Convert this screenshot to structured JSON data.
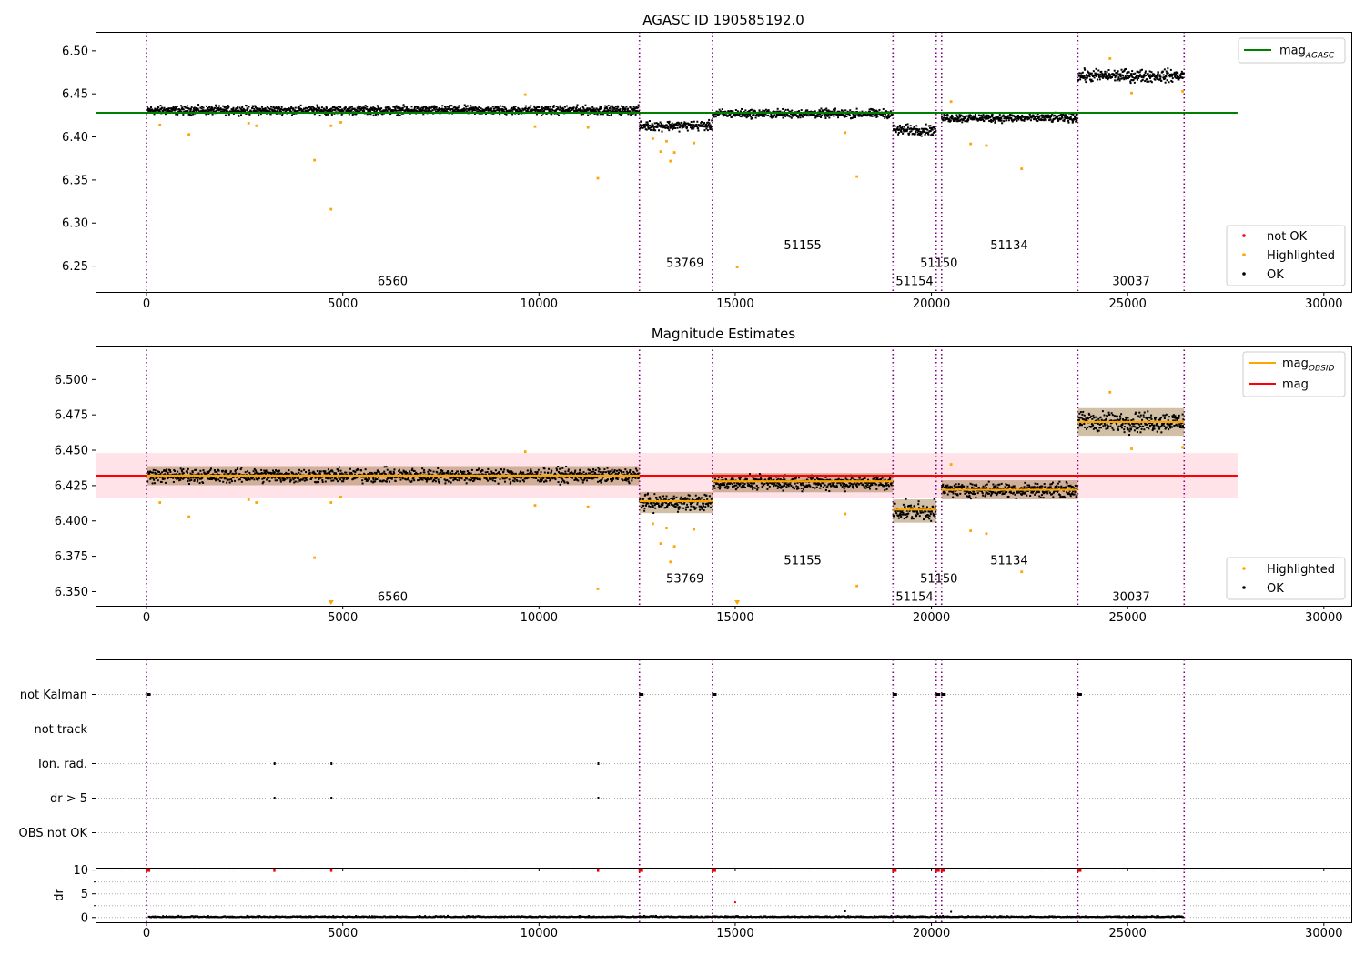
{
  "chart_data": [
    {
      "type": "scatter",
      "title": "AGASC ID 190585192.0",
      "xlim": [
        -1300,
        30700
      ],
      "ylim": [
        6.22,
        6.522
      ],
      "xticks": [
        0,
        5000,
        10000,
        15000,
        20000,
        25000,
        30000
      ],
      "yticks": [
        6.25,
        6.3,
        6.35,
        6.4,
        6.45,
        6.5
      ],
      "obs_boundaries": [
        0,
        12560,
        14420,
        19020,
        20120,
        20260,
        23730,
        26440
      ],
      "obs_labels": [
        {
          "text": "6560",
          "x": 6270,
          "y": 6.232
        },
        {
          "text": "53769",
          "x": 13720,
          "y": 6.253
        },
        {
          "text": "51155",
          "x": 16720,
          "y": 6.274
        },
        {
          "text": "51154",
          "x": 19570,
          "y": 6.232
        },
        {
          "text": "51150",
          "x": 20190,
          "y": 6.253
        },
        {
          "text": "51134",
          "x": 21980,
          "y": 6.274
        },
        {
          "text": "30037",
          "x": 25090,
          "y": 6.232
        }
      ],
      "segments": [
        {
          "x": [
            0,
            12560
          ],
          "center": 6.431,
          "spread": 0.0045
        },
        {
          "x": [
            12560,
            14420
          ],
          "center": 6.413,
          "spread": 0.005
        },
        {
          "x": [
            14420,
            19020
          ],
          "center": 6.427,
          "spread": 0.0045
        },
        {
          "x": [
            19020,
            20120
          ],
          "center": 6.408,
          "spread": 0.0055
        },
        {
          "x": [
            20260,
            23730
          ],
          "center": 6.422,
          "spread": 0.0045
        },
        {
          "x": [
            23730,
            26440
          ],
          "center": 6.471,
          "spread": 0.0065
        }
      ],
      "reference_line": {
        "name": "mag_AGASC",
        "y": 6.428,
        "x": [
          -1300,
          27800
        ],
        "color": "#008000"
      },
      "highlighted_points": [
        [
          340,
          6.414
        ],
        [
          1080,
          6.403
        ],
        [
          2600,
          6.416
        ],
        [
          2800,
          6.413
        ],
        [
          4280,
          6.373
        ],
        [
          4700,
          6.316
        ],
        [
          4700,
          6.413
        ],
        [
          4950,
          6.417
        ],
        [
          9900,
          6.412
        ],
        [
          11250,
          6.411
        ],
        [
          11500,
          6.352
        ],
        [
          12900,
          6.398
        ],
        [
          13100,
          6.383
        ],
        [
          13250,
          6.395
        ],
        [
          13350,
          6.372
        ],
        [
          13450,
          6.382
        ],
        [
          13950,
          6.393
        ],
        [
          15050,
          6.249
        ],
        [
          17800,
          6.405
        ],
        [
          18100,
          6.354
        ],
        [
          20500,
          6.441
        ],
        [
          21000,
          6.392
        ],
        [
          21400,
          6.39
        ],
        [
          22300,
          6.363
        ],
        [
          9650,
          6.449
        ],
        [
          24550,
          6.491
        ],
        [
          25100,
          6.451
        ],
        [
          26400,
          6.453
        ]
      ],
      "legend": {
        "location": "upper right",
        "entries": [
          "mag_AGASC"
        ]
      },
      "legend2": {
        "location": "lower right",
        "entries": [
          "not OK",
          "Highlighted",
          "OK"
        ]
      }
    },
    {
      "type": "scatter",
      "title": "Magnitude Estimates",
      "xlim": [
        -1300,
        30700
      ],
      "ylim": [
        6.34,
        6.524
      ],
      "xticks": [
        0,
        5000,
        10000,
        15000,
        20000,
        25000,
        30000
      ],
      "yticks": [
        6.35,
        6.375,
        6.4,
        6.425,
        6.45,
        6.475,
        6.5
      ],
      "obs_labels": [
        {
          "text": "6560",
          "x": 6270,
          "y": 6.346
        },
        {
          "text": "53769",
          "x": 13720,
          "y": 6.359
        },
        {
          "text": "51155",
          "x": 16720,
          "y": 6.372
        },
        {
          "text": "51154",
          "x": 19570,
          "y": 6.346
        },
        {
          "text": "51150",
          "x": 20190,
          "y": 6.359
        },
        {
          "text": "51134",
          "x": 21980,
          "y": 6.372
        },
        {
          "text": "30037",
          "x": 25090,
          "y": 6.346
        }
      ],
      "segments": [
        {
          "x": [
            0,
            12560
          ],
          "center": 6.432,
          "spread": 0.0045,
          "mag_obsid": 6.432
        },
        {
          "x": [
            12560,
            14420
          ],
          "center": 6.413,
          "spread": 0.005,
          "mag_obsid": 6.414
        },
        {
          "x": [
            14420,
            19020
          ],
          "center": 6.427,
          "spread": 0.0045,
          "mag_obsid": 6.428
        },
        {
          "x": [
            19020,
            20120
          ],
          "center": 6.407,
          "spread": 0.0055,
          "mag_obsid": 6.408
        },
        {
          "x": [
            20260,
            23730
          ],
          "center": 6.422,
          "spread": 0.0045,
          "mag_obsid": 6.422
        },
        {
          "x": [
            23730,
            26440
          ],
          "center": 6.47,
          "spread": 0.0065,
          "mag_obsid": 6.47
        }
      ],
      "mag_line": {
        "name": "mag",
        "y": 6.432,
        "band": [
          6.416,
          6.448
        ],
        "x": [
          -1300,
          27800
        ],
        "color": "#ff0000"
      },
      "highlighted_points": [
        [
          340,
          6.413
        ],
        [
          1080,
          6.403
        ],
        [
          2600,
          6.415
        ],
        [
          2800,
          6.413
        ],
        [
          4280,
          6.374
        ],
        [
          4700,
          6.341
        ],
        [
          4700,
          6.413
        ],
        [
          4950,
          6.417
        ],
        [
          9900,
          6.411
        ],
        [
          11250,
          6.41
        ],
        [
          11500,
          6.352
        ],
        [
          12900,
          6.398
        ],
        [
          13100,
          6.384
        ],
        [
          13250,
          6.395
        ],
        [
          13350,
          6.371
        ],
        [
          13450,
          6.382
        ],
        [
          13950,
          6.394
        ],
        [
          15050,
          6.341
        ],
        [
          17800,
          6.405
        ],
        [
          18100,
          6.354
        ],
        [
          20500,
          6.44
        ],
        [
          21000,
          6.393
        ],
        [
          21400,
          6.391
        ],
        [
          22300,
          6.364
        ],
        [
          9650,
          6.449
        ],
        [
          24550,
          6.491
        ],
        [
          25100,
          6.451
        ],
        [
          26400,
          6.452
        ]
      ],
      "legend": {
        "location": "upper right",
        "entries": [
          "mag_OBSID",
          "mag"
        ]
      },
      "legend2": {
        "location": "lower right",
        "entries": [
          "Highlighted",
          "OK"
        ]
      }
    },
    {
      "type": "scatter",
      "xlim": [
        -1300,
        30700
      ],
      "xticks": [
        0,
        5000,
        10000,
        15000,
        20000,
        25000,
        30000
      ],
      "categories": [
        "not Kalman",
        "not track",
        "Ion. rad.",
        "dr > 5",
        "OBS not OK"
      ],
      "flag_points": {
        "not Kalman": [
          0,
          12560,
          14420,
          19020,
          20120,
          20260,
          23730
        ],
        "not track": [],
        "Ion. rad.": [
          3250,
          4700,
          11500
        ],
        "dr > 5": [
          3250,
          4700,
          11500
        ],
        "OBS not OK": []
      },
      "dr_axis": {
        "ylabel": "dr",
        "yticks": [
          0,
          5,
          10
        ],
        "ylim": [
          -1,
          10.5
        ]
      },
      "dr_high_points": [
        0,
        12560,
        14420,
        19020,
        20120,
        20260,
        23730,
        3250,
        4700,
        11500
      ],
      "dr_other_points": [
        [
          15000,
          3.2
        ],
        [
          17800,
          1.3
        ],
        [
          20500,
          1.2
        ]
      ]
    }
  ],
  "legend_labels": {
    "mag_agasc_main": "mag",
    "mag_agasc_sub": "AGASC",
    "not_ok": "not OK",
    "highlighted": "Highlighted",
    "ok": "OK",
    "mag_obsid_main": "mag",
    "mag_obsid_sub": "OBSID",
    "mag": "mag"
  },
  "colors": {
    "ok": "#000000",
    "highlighted": "#ffa500",
    "not_ok": "#ff0000",
    "agasc_line": "#008000",
    "mag_line": "#ff0000",
    "mag_band": "#ffc0cb",
    "mag_obsid": "#ffa500",
    "boundary": "#800080",
    "grid": "#b0b0b0"
  }
}
